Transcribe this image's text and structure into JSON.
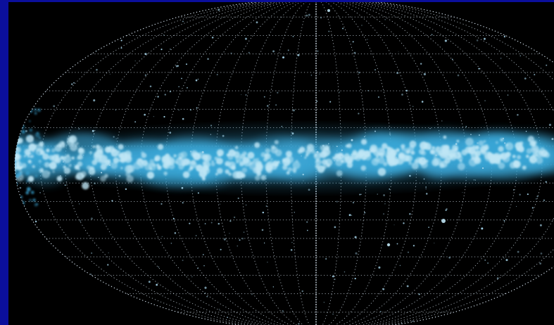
{
  "image": {
    "colors": {
      "frame": "#0b0f9c",
      "sky": "#000000",
      "grid": "#d8e6f2",
      "galactic_band": "#bfe6f5",
      "band_glow": "#3aa6d6",
      "star": "#a9d8ee"
    },
    "projection": "aitoff-ellipse"
  }
}
